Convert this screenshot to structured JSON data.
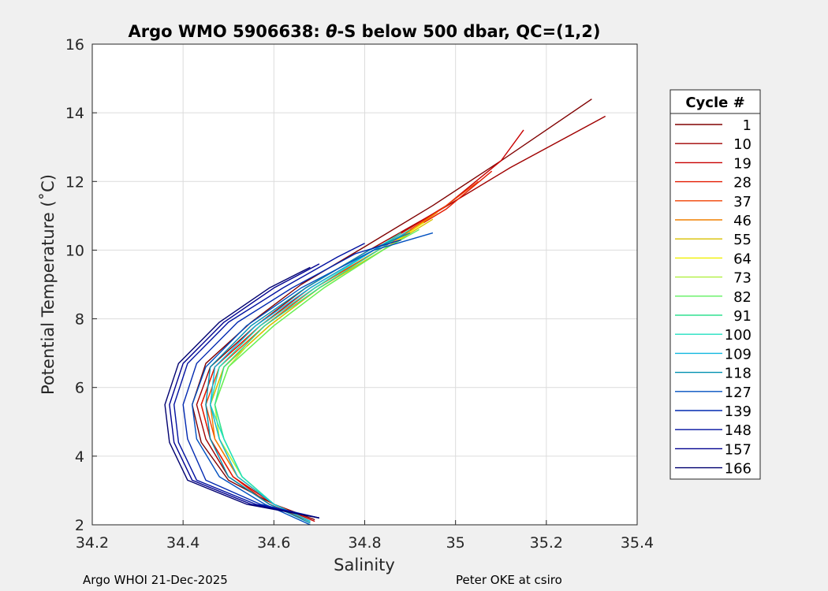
{
  "chart_data": {
    "type": "line",
    "title_prefix": "Argo WMO 5906638: ",
    "title_theta": "θ",
    "title_suffix": "-S below 500 dbar,  QC=(1,2)",
    "xlabel": "Salinity",
    "ylabel": "Potential Temperature (˚C)",
    "xlim": [
      34.2,
      35.4
    ],
    "ylim": [
      2,
      16
    ],
    "xticks": [
      34.2,
      34.4,
      34.6,
      34.8,
      35,
      35.2,
      35.4
    ],
    "yticks": [
      2,
      4,
      6,
      8,
      10,
      12,
      14,
      16
    ],
    "grid": true,
    "legend": {
      "title": "Cycle #",
      "placement": "right",
      "entries": [
        {
          "label": "1",
          "color": "#800000"
        },
        {
          "label": "10",
          "color": "#a00000"
        },
        {
          "label": "19",
          "color": "#c80000"
        },
        {
          "label": "28",
          "color": "#e41a00"
        },
        {
          "label": "37",
          "color": "#f04000"
        },
        {
          "label": "46",
          "color": "#f08000"
        },
        {
          "label": "55",
          "color": "#d8c000"
        },
        {
          "label": "64",
          "color": "#f0f000"
        },
        {
          "label": "73",
          "color": "#b0f040"
        },
        {
          "label": "82",
          "color": "#60f060"
        },
        {
          "label": "91",
          "color": "#30e090"
        },
        {
          "label": "100",
          "color": "#20e0c0"
        },
        {
          "label": "109",
          "color": "#10b8e0"
        },
        {
          "label": "118",
          "color": "#0090b0"
        },
        {
          "label": "127",
          "color": "#0050c0"
        },
        {
          "label": "139",
          "color": "#0028b0"
        },
        {
          "label": "148",
          "color": "#0010a0"
        },
        {
          "label": "157",
          "color": "#000090"
        },
        {
          "label": "166",
          "color": "#000070"
        }
      ]
    },
    "series": [
      {
        "color": "#800000",
        "x": [
          34.69,
          34.6,
          34.5,
          34.44,
          34.42,
          34.45,
          34.55,
          34.66,
          34.8,
          34.95,
          35.1,
          35.3
        ],
        "y": [
          2.15,
          2.6,
          3.3,
          4.4,
          5.5,
          6.7,
          7.9,
          9.0,
          10.1,
          11.3,
          12.6,
          14.4
        ]
      },
      {
        "color": "#a00000",
        "x": [
          34.68,
          34.59,
          34.5,
          34.45,
          34.43,
          34.46,
          34.56,
          34.67,
          34.81,
          34.97,
          35.12,
          35.33
        ],
        "y": [
          2.1,
          2.6,
          3.4,
          4.5,
          5.5,
          6.6,
          7.8,
          8.9,
          10.0,
          11.2,
          12.4,
          13.9
        ]
      },
      {
        "color": "#c80000",
        "x": [
          34.69,
          34.6,
          34.51,
          34.46,
          34.44,
          34.47,
          34.57,
          34.68,
          34.82,
          34.98,
          35.1,
          35.15
        ],
        "y": [
          2.1,
          2.6,
          3.4,
          4.5,
          5.5,
          6.6,
          7.8,
          8.9,
          10.0,
          11.3,
          12.6,
          13.5
        ]
      },
      {
        "color": "#e41a00",
        "x": [
          34.68,
          34.59,
          34.51,
          34.46,
          34.44,
          34.47,
          34.57,
          34.69,
          34.83,
          34.98,
          35.08
        ],
        "y": [
          2.1,
          2.6,
          3.4,
          4.5,
          5.5,
          6.6,
          7.8,
          8.9,
          10.0,
          11.2,
          12.3
        ]
      },
      {
        "color": "#f04000",
        "x": [
          34.68,
          34.6,
          34.52,
          34.47,
          34.45,
          34.48,
          34.58,
          34.69,
          34.83,
          34.97,
          35.05
        ],
        "y": [
          2.1,
          2.6,
          3.4,
          4.5,
          5.5,
          6.6,
          7.8,
          8.9,
          10.0,
          11.2,
          12.0
        ]
      },
      {
        "color": "#f08000",
        "x": [
          34.68,
          34.6,
          34.52,
          34.47,
          34.46,
          34.49,
          34.59,
          34.7,
          34.84,
          34.96
        ],
        "y": [
          2.1,
          2.6,
          3.4,
          4.5,
          5.5,
          6.6,
          7.8,
          8.9,
          10.0,
          11.1
        ]
      },
      {
        "color": "#d8c000",
        "x": [
          34.68,
          34.6,
          34.52,
          34.48,
          34.46,
          34.49,
          34.59,
          34.7,
          34.84,
          34.95
        ],
        "y": [
          2.1,
          2.6,
          3.4,
          4.5,
          5.5,
          6.6,
          7.8,
          8.9,
          10.0,
          10.9
        ]
      },
      {
        "color": "#f0f000",
        "x": [
          34.68,
          34.6,
          34.53,
          34.48,
          34.47,
          34.5,
          34.6,
          34.71,
          34.84,
          34.93
        ],
        "y": [
          2.1,
          2.6,
          3.4,
          4.5,
          5.5,
          6.6,
          7.8,
          8.9,
          10.0,
          10.8
        ]
      },
      {
        "color": "#b0f040",
        "x": [
          34.68,
          34.6,
          34.53,
          34.48,
          34.47,
          34.5,
          34.54
        ],
        "y": [
          2.1,
          2.6,
          3.4,
          4.5,
          5.5,
          6.6,
          7.2
        ]
      },
      {
        "color": "#60f060",
        "x": [
          34.68,
          34.6,
          34.53,
          34.49,
          34.47,
          34.5,
          34.6,
          34.71,
          34.84,
          34.92
        ],
        "y": [
          2.1,
          2.6,
          3.4,
          4.5,
          5.5,
          6.6,
          7.8,
          8.9,
          10.0,
          10.6
        ]
      },
      {
        "color": "#30e090",
        "x": [
          34.68,
          34.6,
          34.53,
          34.49,
          34.47,
          34.49,
          34.58,
          34.7,
          34.83,
          34.9
        ],
        "y": [
          2.1,
          2.6,
          3.4,
          4.5,
          5.5,
          6.6,
          7.8,
          8.9,
          10.0,
          10.6
        ]
      },
      {
        "color": "#20e0c0",
        "x": [
          34.68,
          34.6,
          34.53,
          34.49,
          34.46,
          34.48,
          34.57,
          34.69,
          34.82,
          34.88
        ],
        "y": [
          2.1,
          2.6,
          3.4,
          4.5,
          5.5,
          6.6,
          7.8,
          8.9,
          10.0,
          10.5
        ]
      },
      {
        "color": "#10b8e0",
        "x": [
          34.68,
          34.6,
          34.52,
          34.48,
          34.46,
          34.47,
          34.56,
          34.68,
          34.82,
          34.89
        ],
        "y": [
          2.1,
          2.6,
          3.4,
          4.5,
          5.5,
          6.6,
          7.8,
          8.9,
          10.0,
          10.5
        ]
      },
      {
        "color": "#0090b0",
        "x": [
          34.68,
          34.59,
          34.5,
          34.46,
          34.45,
          34.46,
          34.55,
          34.67,
          34.81,
          34.9
        ],
        "y": [
          2.05,
          2.6,
          3.4,
          4.5,
          5.5,
          6.6,
          7.8,
          8.9,
          10.0,
          10.5
        ]
      },
      {
        "color": "#0050c0",
        "x": [
          34.68,
          34.58,
          34.48,
          34.43,
          34.42,
          34.45,
          34.54,
          34.66,
          34.82,
          34.95
        ],
        "y": [
          2.0,
          2.6,
          3.4,
          4.5,
          5.5,
          6.6,
          7.8,
          8.9,
          10.0,
          10.5
        ]
      },
      {
        "color": "#0028b0",
        "x": [
          34.7,
          34.57,
          34.45,
          34.41,
          34.4,
          34.43,
          34.52,
          34.64,
          34.78,
          34.88
        ],
        "y": [
          2.2,
          2.6,
          3.3,
          4.5,
          5.5,
          6.7,
          7.9,
          8.9,
          9.9,
          10.3
        ]
      },
      {
        "color": "#0010a0",
        "x": [
          34.7,
          34.56,
          34.43,
          34.39,
          34.38,
          34.41,
          34.5,
          34.62,
          34.74,
          34.8
        ],
        "y": [
          2.2,
          2.6,
          3.3,
          4.4,
          5.5,
          6.7,
          7.9,
          8.9,
          9.8,
          10.2
        ]
      },
      {
        "color": "#000090",
        "x": [
          34.7,
          34.55,
          34.42,
          34.38,
          34.37,
          34.4,
          34.49,
          34.6,
          34.7
        ],
        "y": [
          2.2,
          2.6,
          3.3,
          4.4,
          5.5,
          6.7,
          7.9,
          8.9,
          9.6
        ]
      },
      {
        "color": "#000070",
        "x": [
          34.7,
          34.54,
          34.41,
          34.37,
          34.36,
          34.39,
          34.48,
          34.59,
          34.68
        ],
        "y": [
          2.2,
          2.6,
          3.3,
          4.4,
          5.5,
          6.7,
          7.9,
          8.9,
          9.5
        ]
      }
    ]
  },
  "footer": {
    "left": "Argo WHOI 21-Dec-2025",
    "right": "Peter OKE at csiro"
  }
}
